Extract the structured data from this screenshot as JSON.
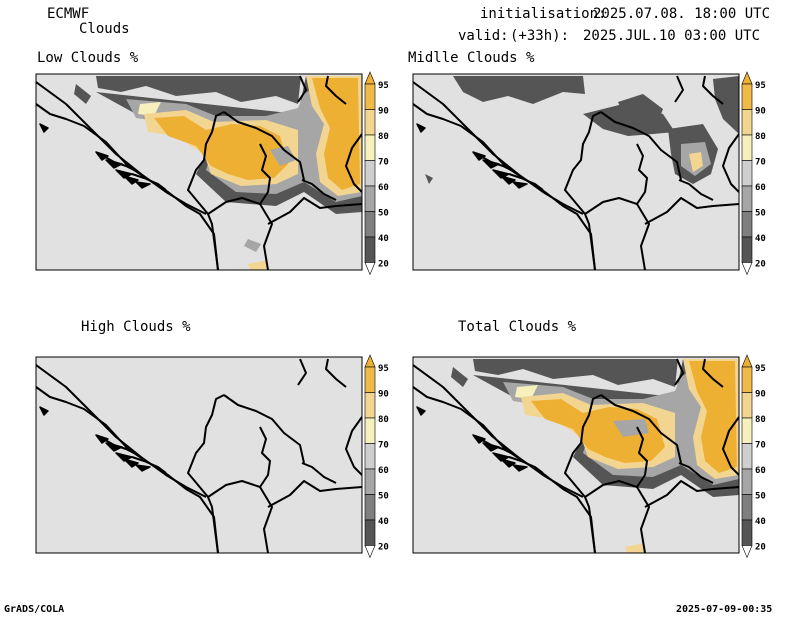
{
  "header": {
    "model": "ECMWF",
    "product": "Clouds",
    "init_label": "initialisation:",
    "init_value": "2025.07.08. 18:00 UTC",
    "valid_label": "valid:",
    "valid_offset": "(+33h):",
    "valid_value": "2025.JUL.10 03:00 UTC"
  },
  "panels": [
    {
      "id": "low",
      "title": "Low Clouds %"
    },
    {
      "id": "mid",
      "title": "Midlle Clouds %"
    },
    {
      "id": "high",
      "title": "High Clouds %"
    },
    {
      "id": "total",
      "title": "Total Clouds %"
    }
  ],
  "colorbar": {
    "levels": [
      "20",
      "40",
      "50",
      "60",
      "70",
      "80",
      "90",
      "95"
    ],
    "colors": {
      "below20": "#ffffff",
      "20_40": "#555555",
      "40_50": "#7f7f7f",
      "50_60": "#a6a6a6",
      "60_70": "#cfcfcf",
      "70_80": "#f6f0bd",
      "80_90": "#f3d592",
      "90_95": "#efba4a",
      "above95": "#eeb033"
    }
  },
  "map_colors": {
    "background": "#e1e1e1",
    "border": "#000000"
  },
  "footer": {
    "left": "GrADS/COLA",
    "right": "2025-07-09-00:35"
  }
}
